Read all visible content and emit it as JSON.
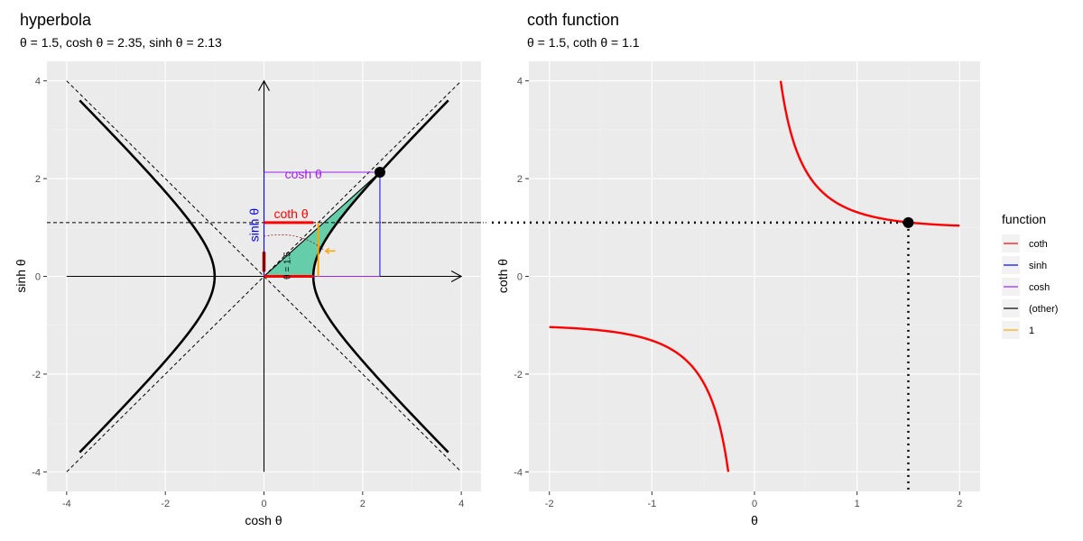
{
  "chart_data": [
    {
      "type": "line",
      "title": "hyperbola",
      "subtitle": "θ = 1.5, cosh θ = 2.35, sinh θ = 2.13",
      "xlabel": "cosh θ",
      "ylabel": "sinh θ",
      "xlim": [
        -4.4,
        4.4
      ],
      "ylim": [
        -4.4,
        4.4
      ],
      "x_ticks": [
        -4,
        -2,
        0,
        2,
        4
      ],
      "y_ticks": [
        -4,
        -2,
        0,
        2,
        4
      ],
      "theta": 1.5,
      "cosh": 2.35,
      "sinh": 2.13,
      "coth": 1.1,
      "hyperbola_branch_limit": 3.6,
      "asymptote_range": [
        -4,
        4
      ],
      "axis_arrow_range": [
        -4,
        4
      ],
      "annotations": {
        "cosh_label": "cosh θ",
        "sinh_label": "sinh θ",
        "coth_label": "coth θ",
        "theta_label": "θ = 1.5"
      }
    },
    {
      "type": "line",
      "title": "coth function",
      "subtitle": "θ = 1.5, coth θ = 1.1",
      "xlabel": "θ",
      "ylabel": "coth θ",
      "xlim": [
        -2.2,
        2.2
      ],
      "ylim": [
        -4.4,
        4.4
      ],
      "x_ticks": [
        -2,
        -1,
        0,
        1,
        2
      ],
      "y_ticks": [
        -4,
        -2,
        0,
        2,
        4
      ],
      "theta_range": [
        -2,
        2
      ],
      "y_clip": [
        -4,
        4
      ],
      "point": [
        1.5,
        1.1
      ],
      "series": [
        {
          "name": "coth",
          "color": "#ff0000"
        }
      ]
    }
  ],
  "legend": {
    "title": "function",
    "items": [
      {
        "label": "coth",
        "color": "#ff0000"
      },
      {
        "label": "sinh",
        "color": "#0000ff"
      },
      {
        "label": "cosh",
        "color": "#a020f0"
      },
      {
        "label": "(other)",
        "color": "#000000"
      },
      {
        "label": "1",
        "color": "#ffa500"
      }
    ]
  },
  "colors": {
    "panel": "#ebebeb",
    "grid_major": "#ffffff",
    "grid_minor": "#f2f2f2",
    "fill": "#66cdaa",
    "coth": "#ff0000",
    "sinh": "#0000ff",
    "cosh": "#a020f0",
    "one": "#ffa500",
    "arc": "#8b0000",
    "other": "#000000"
  }
}
